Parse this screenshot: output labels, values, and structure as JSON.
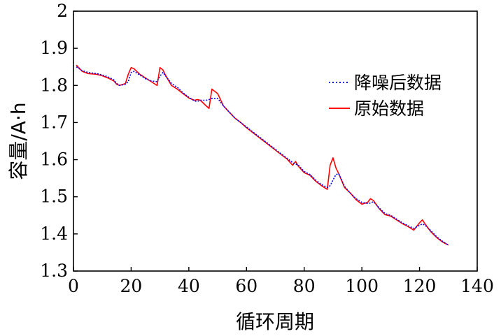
{
  "chart_data": {
    "type": "line",
    "xlabel": "循环周期",
    "ylabel": "容量/A·h",
    "xlim": [
      0,
      140
    ],
    "ylim": [
      1.3,
      2.0
    ],
    "x_ticks": [
      "0",
      "20",
      "40",
      "60",
      "80",
      "100",
      "120",
      "140"
    ],
    "y_ticks": [
      "1.3",
      "1.4",
      "1.5",
      "1.6",
      "1.7",
      "1.8",
      "1.9",
      "2"
    ],
    "grid": false,
    "legend_position": "top-right",
    "series": [
      {
        "name": "降噪后数据",
        "color": "#0000ff",
        "dash": "dotted",
        "x": [
          1,
          3,
          5,
          8,
          10,
          12,
          14,
          15,
          16,
          18,
          19,
          20,
          21,
          23,
          25,
          27,
          29,
          30,
          31,
          32,
          34,
          36,
          38,
          40,
          42,
          43,
          44,
          46,
          47,
          48,
          50,
          52,
          54,
          56,
          58,
          60,
          62,
          64,
          66,
          68,
          70,
          72,
          74,
          76,
          77,
          78,
          80,
          82,
          84,
          86,
          88,
          89,
          90,
          91,
          92,
          94,
          96,
          98,
          100,
          102,
          103,
          104,
          106,
          108,
          110,
          112,
          114,
          116,
          118,
          120,
          121,
          122,
          124,
          126,
          128,
          130
        ],
        "y": [
          1.85,
          1.84,
          1.835,
          1.832,
          1.828,
          1.823,
          1.815,
          1.805,
          1.8,
          1.803,
          1.81,
          1.835,
          1.838,
          1.828,
          1.818,
          1.812,
          1.81,
          1.825,
          1.835,
          1.825,
          1.805,
          1.795,
          1.78,
          1.768,
          1.758,
          1.757,
          1.76,
          1.76,
          1.762,
          1.765,
          1.765,
          1.745,
          1.728,
          1.712,
          1.7,
          1.688,
          1.676,
          1.664,
          1.652,
          1.64,
          1.628,
          1.616,
          1.604,
          1.592,
          1.588,
          1.585,
          1.568,
          1.56,
          1.545,
          1.533,
          1.525,
          1.53,
          1.545,
          1.56,
          1.562,
          1.528,
          1.51,
          1.495,
          1.485,
          1.482,
          1.483,
          1.487,
          1.47,
          1.455,
          1.45,
          1.44,
          1.43,
          1.422,
          1.415,
          1.423,
          1.427,
          1.423,
          1.408,
          1.392,
          1.38,
          1.37
        ]
      },
      {
        "name": "原始数据",
        "color": "#ff0000",
        "dash": "solid",
        "x": [
          1,
          3,
          5,
          8,
          10,
          12,
          14,
          15,
          16,
          18,
          19,
          20,
          21,
          23,
          25,
          27,
          29,
          30,
          31,
          32,
          34,
          36,
          38,
          40,
          42,
          43,
          44,
          46,
          47,
          48,
          50,
          52,
          54,
          56,
          58,
          60,
          62,
          64,
          66,
          68,
          70,
          72,
          74,
          76,
          77,
          78,
          80,
          82,
          84,
          86,
          88,
          89,
          90,
          91,
          92,
          94,
          96,
          98,
          100,
          102,
          103,
          104,
          106,
          108,
          110,
          112,
          114,
          116,
          118,
          120,
          121,
          122,
          124,
          126,
          128,
          130
        ],
        "y": [
          1.855,
          1.838,
          1.832,
          1.83,
          1.826,
          1.82,
          1.812,
          1.803,
          1.8,
          1.805,
          1.83,
          1.848,
          1.845,
          1.83,
          1.82,
          1.81,
          1.8,
          1.848,
          1.842,
          1.826,
          1.8,
          1.79,
          1.778,
          1.766,
          1.76,
          1.762,
          1.76,
          1.745,
          1.738,
          1.79,
          1.778,
          1.745,
          1.728,
          1.712,
          1.7,
          1.686,
          1.674,
          1.662,
          1.65,
          1.638,
          1.626,
          1.614,
          1.602,
          1.585,
          1.595,
          1.582,
          1.565,
          1.558,
          1.542,
          1.53,
          1.52,
          1.585,
          1.605,
          1.578,
          1.562,
          1.525,
          1.51,
          1.492,
          1.48,
          1.485,
          1.495,
          1.49,
          1.468,
          1.452,
          1.448,
          1.438,
          1.428,
          1.42,
          1.41,
          1.43,
          1.438,
          1.426,
          1.405,
          1.39,
          1.378,
          1.37
        ]
      }
    ]
  }
}
